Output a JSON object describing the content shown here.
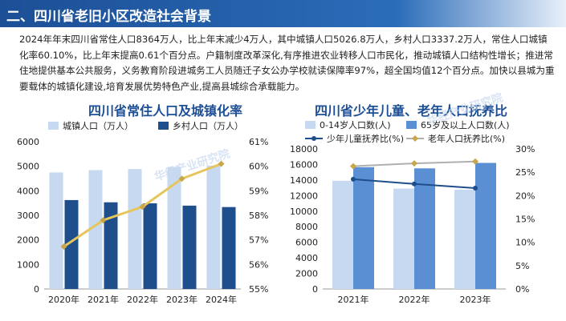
{
  "header": {
    "title": "二、四川省老旧小区改造社会背景"
  },
  "paragraph": "2024年年末四川省常住人口8364万人，比上年末减少4万人，其中城镇人口5026.8万人，乡村人口3337.2万人，常住人口城镇化率60.10%，比上年末提高0.61个百分点。户籍制度改革深化,有序推进农业转移人口市民化，推动城镇人口结构性增长；推进常住地提供基本公共服务，义务教育阶段进城务工人员随迁子女公办学校就读保障率97%，超全国均值12个百分点。加快以县城为重要载体的城镇化建设,培育发展优势特色产业,提高县城综合承载能力。",
  "watermark": "华经产业研究院",
  "colors": {
    "urban": "#c6d9f1",
    "rural": "#1f4e8c",
    "rate": "#e6c65c",
    "child": "#c6d9f1",
    "old": "#5b8fd3",
    "child_ratio": "#1f4e8c",
    "old_ratio": "#b0b0b0",
    "title": "#1c4f96"
  },
  "chart_data": [
    {
      "type": "bar",
      "title": "四川省常住人口及城镇化率",
      "categories": [
        "2020年",
        "2021年",
        "2022年",
        "2023年",
        "2024年"
      ],
      "series": [
        {
          "name": "城镇人口（万人）",
          "kind": "bar",
          "axis": "left",
          "values": [
            4746,
            4841,
            4886,
            4973,
            5026.8
          ]
        },
        {
          "name": "乡村人口（万人）",
          "kind": "bar",
          "axis": "left",
          "values": [
            3622,
            3531,
            3488,
            3395,
            3337.2
          ]
        },
        {
          "name": "城镇化率",
          "kind": "line",
          "axis": "right",
          "values": [
            56.73,
            57.8,
            58.35,
            59.49,
            60.1
          ]
        }
      ],
      "y_left": {
        "min": 0,
        "max": 6000,
        "ticks": [
          "0",
          "1000",
          "2000",
          "3000",
          "4000",
          "5000",
          "6000"
        ]
      },
      "y_right": {
        "min": 55,
        "max": 61,
        "ticks": [
          "55%",
          "56%",
          "57%",
          "58%",
          "59%",
          "60%",
          "61%"
        ]
      },
      "grid": false,
      "legend": "top"
    },
    {
      "type": "bar",
      "title": "四川省少年儿童、老年人口抚养比",
      "categories": [
        "2021年",
        "2022年",
        "2023年"
      ],
      "series": [
        {
          "name": "0-14岁人口数(人)",
          "kind": "bar",
          "axis": "left",
          "values": [
            13900,
            12900,
            12750
          ]
        },
        {
          "name": "65岁及以上人口数(人)",
          "kind": "bar",
          "axis": "left",
          "values": [
            15650,
            15500,
            16200
          ]
        },
        {
          "name": "少年儿童抚养比(%)",
          "kind": "line",
          "axis": "right",
          "values": [
            23.5,
            22.5,
            21.6
          ]
        },
        {
          "name": "老年人口抚养比(%)",
          "kind": "line",
          "axis": "right",
          "values": [
            26.3,
            26.9,
            27.3
          ]
        }
      ],
      "y_left": {
        "min": 0,
        "max": 18000,
        "ticks": [
          "0",
          "2000",
          "4000",
          "6000",
          "8000",
          "10000",
          "12000",
          "14000",
          "16000",
          "18000"
        ]
      },
      "y_right": {
        "min": 0,
        "max": 30,
        "ticks": [
          "0%",
          "5%",
          "10%",
          "15%",
          "20%",
          "25%",
          "30%"
        ]
      },
      "grid": false,
      "legend": "top"
    }
  ]
}
